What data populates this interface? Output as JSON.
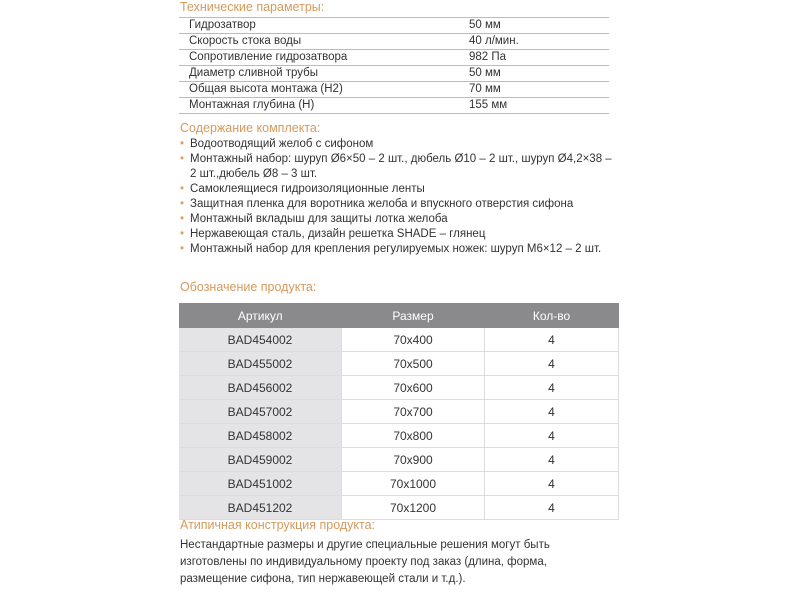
{
  "tech": {
    "title": "Технические параметры:",
    "rows": [
      [
        "Гидрозатвор",
        "50 мм"
      ],
      [
        "Скорость стока воды",
        "40 л/мин."
      ],
      [
        "Сопротивление гидрозатвора",
        "982 Па"
      ],
      [
        "Диаметр сливной трубы",
        "50 мм"
      ],
      [
        "Общая высота монтажа (H2)",
        "70 мм"
      ],
      [
        "Монтажная глубина (H)",
        "155  мм"
      ]
    ]
  },
  "kit": {
    "title": "Содержание комплекта:",
    "items": [
      "Водоотводящий желоб с сифоном",
      "Монтажный набор: шуруп Ø6×50 – 2 шт., дюбель Ø10 – 2 шт., шуруп Ø4,2×38 – 2 шт.,дюбель Ø8 – 3 шт.",
      "Самоклеящиеся гидроизоляционные ленты",
      "Защитная пленка для воротника желоба и впускного отверстия сифона",
      "Монтажный вкладыш для защиты лотка желоба",
      "Нержавеющая сталь, дизайн решетка SHADE – глянец",
      "Монтажный набор для крепления регулируемых ножек: шуруп М6×12 – 2 шт."
    ]
  },
  "product": {
    "title": "Обозначение продукта:",
    "headers": [
      "Артикул",
      "Размер",
      "Кол-во"
    ],
    "rows": [
      [
        "BAD454002",
        "70x400",
        "4"
      ],
      [
        "BAD455002",
        "70x500",
        "4"
      ],
      [
        "BAD456002",
        "70x600",
        "4"
      ],
      [
        "BAD457002",
        "70x700",
        "4"
      ],
      [
        "BAD458002",
        "70x800",
        "4"
      ],
      [
        "BAD459002",
        "70x900",
        "4"
      ],
      [
        "BAD451002",
        "70x1000",
        "4"
      ],
      [
        "BAD451202",
        "70x1200",
        "4"
      ]
    ]
  },
  "atypical": {
    "title": "Атипичная конструкция продукта:",
    "text": "Нестандартные размеры и другие специальные решения могут быть изготовлены по индивидуальному проекту под заказ (длина, форма, размещение сифона, тип нержавеющей стали и т.д.)."
  }
}
